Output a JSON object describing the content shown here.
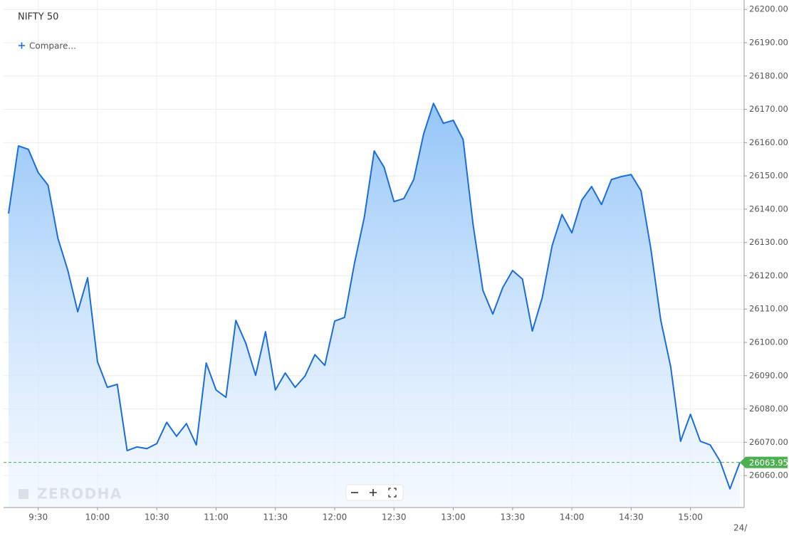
{
  "chart_data": {
    "type": "area-line",
    "title": "NIFTY 50",
    "compare_label": "Compare...",
    "watermark": "ZERODHA",
    "date_label": "24/",
    "color": "#1a6ddb",
    "grid": true,
    "categories": [
      null,
      null,
      null,
      "9:30",
      null,
      null,
      null,
      null,
      null,
      "10:00",
      null,
      null,
      null,
      null,
      null,
      "10:30",
      null,
      null,
      null,
      null,
      null,
      "11:00",
      null,
      null,
      null,
      null,
      null,
      "11:30",
      null,
      null,
      null,
      null,
      null,
      "12:00",
      null,
      null,
      null,
      null,
      null,
      "12:30",
      null,
      null,
      null,
      null,
      null,
      "13:00",
      null,
      null,
      null,
      null,
      null,
      "13:30",
      null,
      null,
      null,
      null,
      null,
      "14:00",
      null,
      null,
      null,
      null,
      null,
      "14:30",
      null,
      null,
      null,
      null,
      null,
      "15:00",
      null,
      null,
      null,
      null,
      null
    ],
    "values": [
      26138.7,
      26159,
      26158,
      26151,
      26147.2,
      26131.2,
      26121.6,
      26109.2,
      26119.4,
      26094.2,
      26086.5,
      26087.4,
      26067.5,
      26068.6,
      26068.1,
      26069.6,
      26076,
      26071.8,
      26075.6,
      26069.2,
      26093.8,
      26085.7,
      26083.5,
      26106.6,
      26099.8,
      26090.1,
      26103.2,
      26085.7,
      26090.8,
      26086.5,
      26089.9,
      26096.3,
      26093.1,
      26106.4,
      26107.5,
      26123.7,
      26137.6,
      26157.5,
      26152.6,
      26142.3,
      26143.2,
      26148.9,
      26162.6,
      26171.8,
      26165.8,
      26166.7,
      26160.9,
      26135.5,
      26115.6,
      26108.5,
      26116.4,
      26121.6,
      26119,
      26103.4,
      26113.4,
      26129,
      26138.4,
      26132.9,
      26142.7,
      26146.8,
      26141.4,
      26148.9,
      26149.8,
      26150.4,
      26145.5,
      26128,
      26106.6,
      26092.7,
      26070.3,
      26078.4,
      26070.3,
      26069.2,
      26064.3,
      26056,
      26063.95
    ],
    "ylim": [
      26050.4,
      26202.4
    ],
    "yticks": [
      {
        "value": 26060,
        "label": "26060.00"
      },
      {
        "value": 26070,
        "label": "26070.00"
      },
      {
        "value": 26080,
        "label": "26080.00"
      },
      {
        "value": 26090,
        "label": "26090.00"
      },
      {
        "value": 26100,
        "label": "26100.00"
      },
      {
        "value": 26110,
        "label": "26110.00"
      },
      {
        "value": 26120,
        "label": "26120.00"
      },
      {
        "value": 26130,
        "label": "26130.00"
      },
      {
        "value": 26140,
        "label": "26140.00"
      },
      {
        "value": 26150,
        "label": "26150.00"
      },
      {
        "value": 26160,
        "label": "26160.00"
      },
      {
        "value": 26170,
        "label": "26170.00"
      },
      {
        "value": 26180,
        "label": "26180.00"
      },
      {
        "value": 26190,
        "label": "26190.00"
      },
      {
        "value": 26200,
        "label": "26200.00"
      }
    ]
  }
}
